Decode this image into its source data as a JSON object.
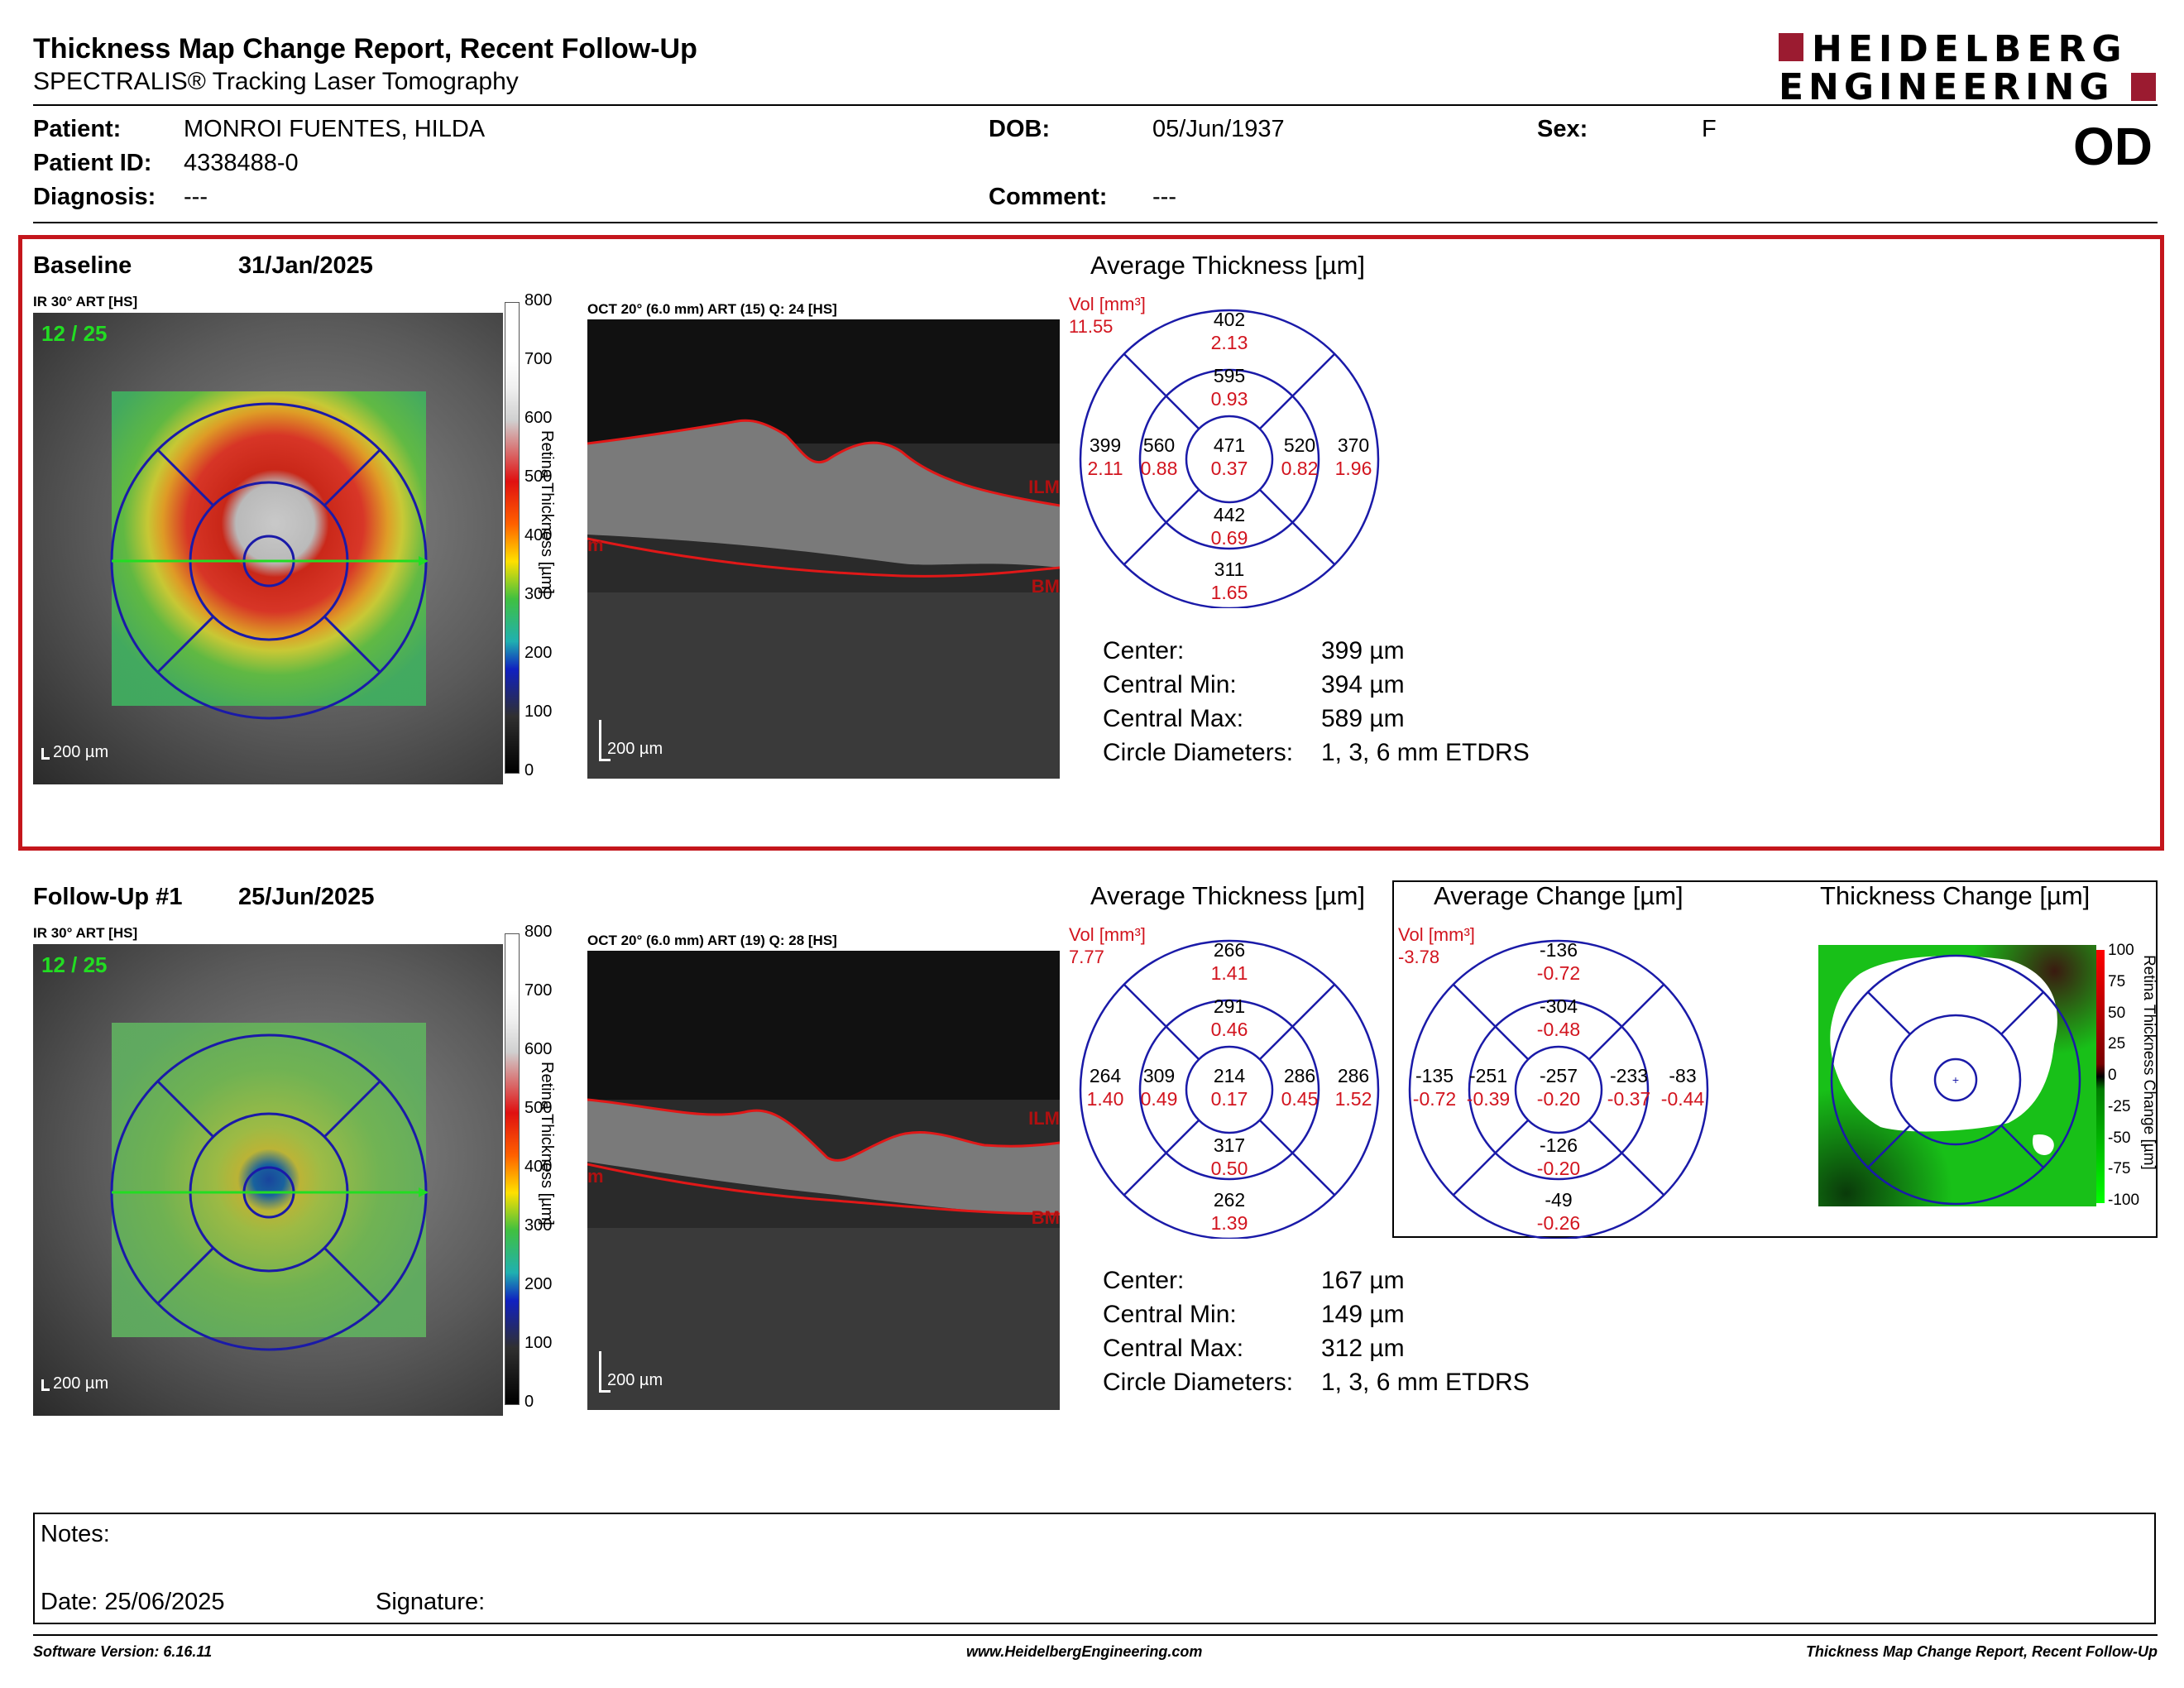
{
  "header": {
    "title": "Thickness Map Change Report, Recent Follow-Up",
    "subtitle": "SPECTRALIS® Tracking Laser Tomography",
    "logo_line1": "HEIDELBERG",
    "logo_line2": "ENGINEERING",
    "eye": "OD"
  },
  "patient": {
    "patient_label": "Patient:",
    "patient_value": "MONROI FUENTES, HILDA",
    "dob_label": "DOB:",
    "dob_value": "05/Jun/1937",
    "sex_label": "Sex:",
    "sex_value": "F",
    "id_label": "Patient ID:",
    "id_value": "4338488-0",
    "diagnosis_label": "Diagnosis:",
    "diagnosis_value": "---",
    "comment_label": "Comment:",
    "comment_value": "---"
  },
  "baseline": {
    "label": "Baseline",
    "date": "31/Jan/2025",
    "ir_label": "IR 30° ART [HS]",
    "ir_counter": "12 / 25",
    "ir_scale": "200 µm",
    "oct_label": "OCT 20° (6.0 mm) ART (15) Q: 24 [HS]",
    "oct_scale": "200 µm",
    "ilm": "ILM",
    "bm": "BM",
    "m_mark": "m",
    "colorbar_title": "Retina Thickness [µm]",
    "colorbar_ticks": [
      "800",
      "700",
      "600",
      "500",
      "400",
      "300",
      "200",
      "100",
      "0"
    ],
    "etdrs": {
      "title": "Average Thickness [µm]",
      "vol_label": "Vol [mm³]",
      "vol_total": "11.55",
      "top_outer": [
        "402",
        "2.13"
      ],
      "top_inner": [
        "595",
        "0.93"
      ],
      "left_outer": [
        "399",
        "2.11"
      ],
      "left_inner": [
        "560",
        "0.88"
      ],
      "center": [
        "471",
        "0.37"
      ],
      "right_inner": [
        "520",
        "0.82"
      ],
      "right_outer": [
        "370",
        "1.96"
      ],
      "bottom_inner": [
        "442",
        "0.69"
      ],
      "bottom_outer": [
        "311",
        "1.65"
      ]
    },
    "stats": {
      "center_label": "Center:",
      "center_value": "399 µm",
      "min_label": "Central Min:",
      "min_value": "394 µm",
      "max_label": "Central Max:",
      "max_value": "589 µm",
      "circ_label": "Circle Diameters:",
      "circ_value": "1, 3, 6 mm ETDRS"
    }
  },
  "followup": {
    "label": "Follow-Up #1",
    "date": "25/Jun/2025",
    "ir_label": "IR 30° ART [HS]",
    "ir_counter": "12 / 25",
    "ir_scale": "200 µm",
    "oct_label": "OCT 20° (6.0 mm) ART (19) Q: 28 [HS]",
    "oct_scale": "200 µm",
    "ilm": "ILM",
    "bm": "BM",
    "m_mark": "m",
    "colorbar_title": "Retina Thickness [µm]",
    "colorbar_ticks": [
      "800",
      "700",
      "600",
      "500",
      "400",
      "300",
      "200",
      "100",
      "0"
    ],
    "etdrs": {
      "title": "Average Thickness [µm]",
      "vol_label": "Vol [mm³]",
      "vol_total": "7.77",
      "top_outer": [
        "266",
        "1.41"
      ],
      "top_inner": [
        "291",
        "0.46"
      ],
      "left_outer": [
        "264",
        "1.40"
      ],
      "left_inner": [
        "309",
        "0.49"
      ],
      "center": [
        "214",
        "0.17"
      ],
      "right_inner": [
        "286",
        "0.45"
      ],
      "right_outer": [
        "286",
        "1.52"
      ],
      "bottom_inner": [
        "317",
        "0.50"
      ],
      "bottom_outer": [
        "262",
        "1.39"
      ]
    },
    "change": {
      "title": "Average Change [µm]",
      "vol_label": "Vol [mm³]",
      "vol_total": "-3.78",
      "top_outer": [
        "-136",
        "-0.72"
      ],
      "top_inner": [
        "-304",
        "-0.48"
      ],
      "left_outer": [
        "-135",
        "-0.72"
      ],
      "left_inner": [
        "-251",
        "-0.39"
      ],
      "center": [
        "-257",
        "-0.20"
      ],
      "right_inner": [
        "-233",
        "-0.37"
      ],
      "right_outer": [
        "-83",
        "-0.44"
      ],
      "bottom_inner": [
        "-126",
        "-0.20"
      ],
      "bottom_outer": [
        "-49",
        "-0.26"
      ]
    },
    "thickness_change": {
      "title": "Thickness Change [µm]",
      "colorbar_title": "Retina Thickness Change [µm]",
      "ticks": [
        "100",
        "75",
        "50",
        "25",
        "0",
        "-25",
        "-50",
        "-75",
        "-100"
      ]
    },
    "stats": {
      "center_label": "Center:",
      "center_value": "167 µm",
      "min_label": "Central Min:",
      "min_value": "149 µm",
      "max_label": "Central Max:",
      "max_value": "312 µm",
      "circ_label": "Circle Diameters:",
      "circ_value": "1, 3, 6 mm ETDRS"
    }
  },
  "notes": {
    "notes_label": "Notes:",
    "date_label": "Date: 25/06/2025",
    "signature_label": "Signature:"
  },
  "footer": {
    "software": "Software Version: 6.16.11",
    "website": "www.HeidelbergEngineering.com",
    "report": "Thickness Map Change Report, Recent Follow-Up"
  },
  "colors": {
    "brand_red": "#9b1b30",
    "frame_red": "#c4161c",
    "etdrs_blue": "#1a1aa8",
    "value_red": "#d2141e"
  }
}
